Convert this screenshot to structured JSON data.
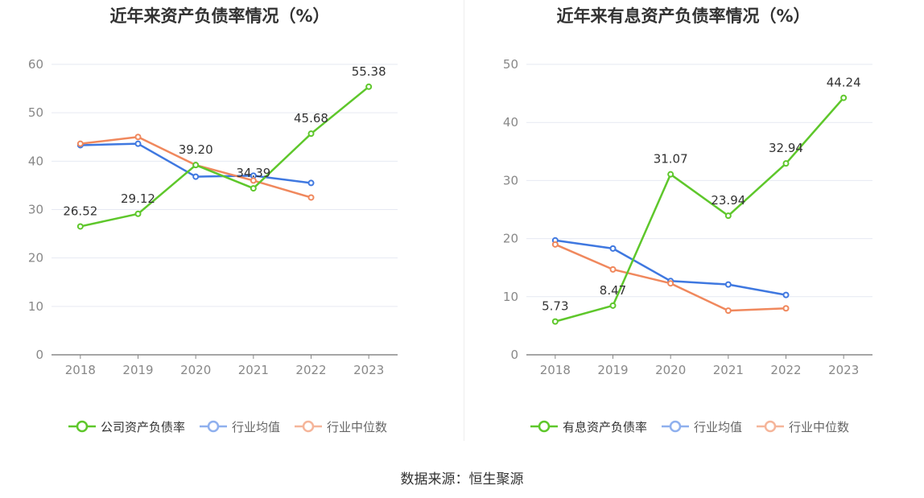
{
  "chart_data": [
    {
      "type": "line",
      "title": "近年来资产负债率情况（%）",
      "x": [
        "2018",
        "2019",
        "2020",
        "2021",
        "2022",
        "2023"
      ],
      "ylim": [
        0,
        60
      ],
      "yticks": [
        "0",
        "10",
        "20",
        "30",
        "40",
        "50",
        "60"
      ],
      "grid": true,
      "legend_position": "bottom",
      "series": [
        {
          "name": "公司资产负债率",
          "color": "#5ec72b",
          "values": [
            26.52,
            29.12,
            39.2,
            34.39,
            45.68,
            55.38
          ],
          "labels": [
            "26.52",
            "29.12",
            "39.20",
            "34.39",
            "45.68",
            "55.38"
          ]
        },
        {
          "name": "行业均值",
          "color": "#3f78e0",
          "values": [
            43.3,
            43.6,
            36.8,
            37.0,
            35.5,
            null
          ]
        },
        {
          "name": "行业中位数",
          "color": "#f0885d",
          "values": [
            43.6,
            45.0,
            39.2,
            36.0,
            32.5,
            null
          ]
        }
      ]
    },
    {
      "type": "line",
      "title": "近年来有息资产负债率情况（%）",
      "x": [
        "2018",
        "2019",
        "2020",
        "2021",
        "2022",
        "2023"
      ],
      "ylim": [
        0,
        50
      ],
      "yticks": [
        "0",
        "10",
        "20",
        "30",
        "40",
        "50"
      ],
      "grid": true,
      "legend_position": "bottom",
      "series": [
        {
          "name": "有息资产负债率",
          "color": "#5ec72b",
          "values": [
            5.73,
            8.47,
            31.07,
            23.94,
            32.94,
            44.24
          ],
          "labels": [
            "5.73",
            "8.47",
            "31.07",
            "23.94",
            "32.94",
            "44.24"
          ]
        },
        {
          "name": "行业均值",
          "color": "#3f78e0",
          "values": [
            19.7,
            18.3,
            12.7,
            12.1,
            10.3,
            null
          ]
        },
        {
          "name": "行业中位数",
          "color": "#f0885d",
          "values": [
            19.0,
            14.7,
            12.3,
            7.6,
            8.0,
            null
          ]
        }
      ]
    }
  ],
  "source": "数据来源：恒生聚源"
}
